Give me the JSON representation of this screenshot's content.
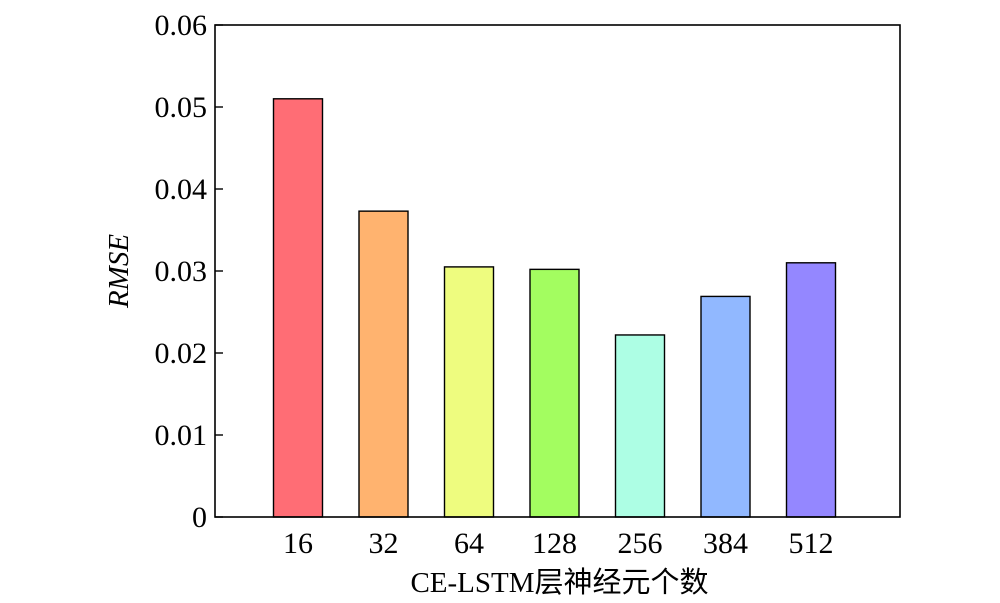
{
  "chart_data": {
    "type": "bar",
    "categories": [
      "16",
      "32",
      "64",
      "128",
      "256",
      "384",
      "512"
    ],
    "values": [
      0.051,
      0.0373,
      0.0305,
      0.0302,
      0.0222,
      0.0269,
      0.031
    ],
    "colors": [
      "#ff6d75",
      "#ffb36f",
      "#eefc7f",
      "#a3fd60",
      "#adfee4",
      "#91b8ff",
      "#9487ff"
    ],
    "xlabel": "CE-LSTM层神经元个数",
    "ylabel": "RMSE",
    "ylim": [
      0,
      0.06
    ],
    "yticks": [
      "0",
      "0.01",
      "0.02",
      "0.03",
      "0.04",
      "0.05",
      "0.06"
    ],
    "grid": false,
    "legend": "none"
  }
}
